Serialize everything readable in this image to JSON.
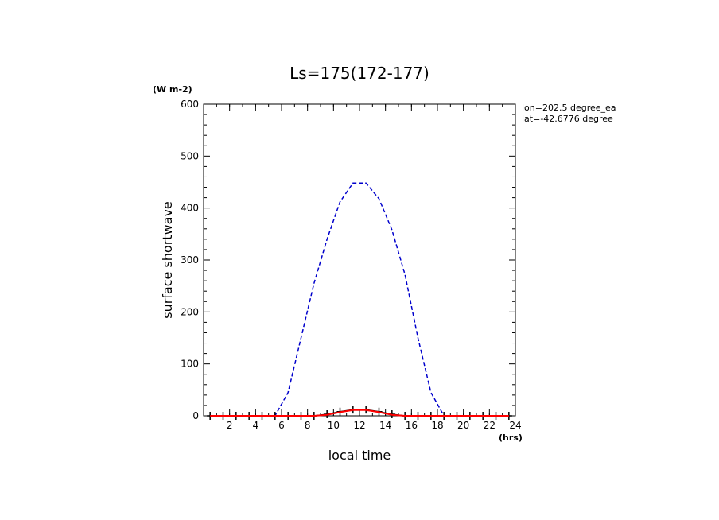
{
  "chart_data": {
    "type": "line",
    "title": "Ls=175(172-177)",
    "xlabel": "local time",
    "ylabel": "surface shortwave",
    "y_unit": "(W m-2)",
    "x_unit": "(hrs)",
    "xlim": [
      0,
      24
    ],
    "ylim": [
      0,
      600
    ],
    "x_ticks": [
      2,
      4,
      6,
      8,
      10,
      12,
      14,
      16,
      18,
      20,
      22,
      24
    ],
    "y_ticks": [
      0,
      100,
      200,
      300,
      400,
      500,
      600
    ],
    "annotations": [
      "lon=202.5 degree_ea",
      "lat=-42.6776 degree"
    ],
    "grid": false,
    "x": [
      0.5,
      1.5,
      2.5,
      3.5,
      4.5,
      5.5,
      6.5,
      7.5,
      8.5,
      9.5,
      10.5,
      11.5,
      12.5,
      13.5,
      14.5,
      15.5,
      16.5,
      17.5,
      18.5,
      19.5,
      20.5,
      21.5,
      22.5,
      23.5
    ],
    "series": [
      {
        "color": "#0000cc",
        "style": "dashed",
        "values": [
          0,
          0,
          0,
          0,
          0,
          0,
          45,
          150,
          255,
          340,
          412,
          448,
          448,
          418,
          358,
          272,
          150,
          45,
          0,
          0,
          0,
          0,
          0,
          0
        ]
      },
      {
        "color": "#000000",
        "style": "solid-plus-markers",
        "values": [
          0,
          0,
          0,
          0,
          0,
          0,
          0,
          0,
          0,
          3,
          8,
          12,
          12,
          8,
          3,
          0,
          0,
          0,
          0,
          0,
          0,
          0,
          0,
          0
        ]
      },
      {
        "color": "#ff0000",
        "style": "solid",
        "values": [
          0,
          0,
          0,
          0,
          0,
          0,
          0,
          0,
          0,
          2,
          7,
          11,
          11,
          7,
          2,
          0,
          0,
          0,
          0,
          0,
          0,
          0,
          0,
          0
        ]
      }
    ]
  }
}
